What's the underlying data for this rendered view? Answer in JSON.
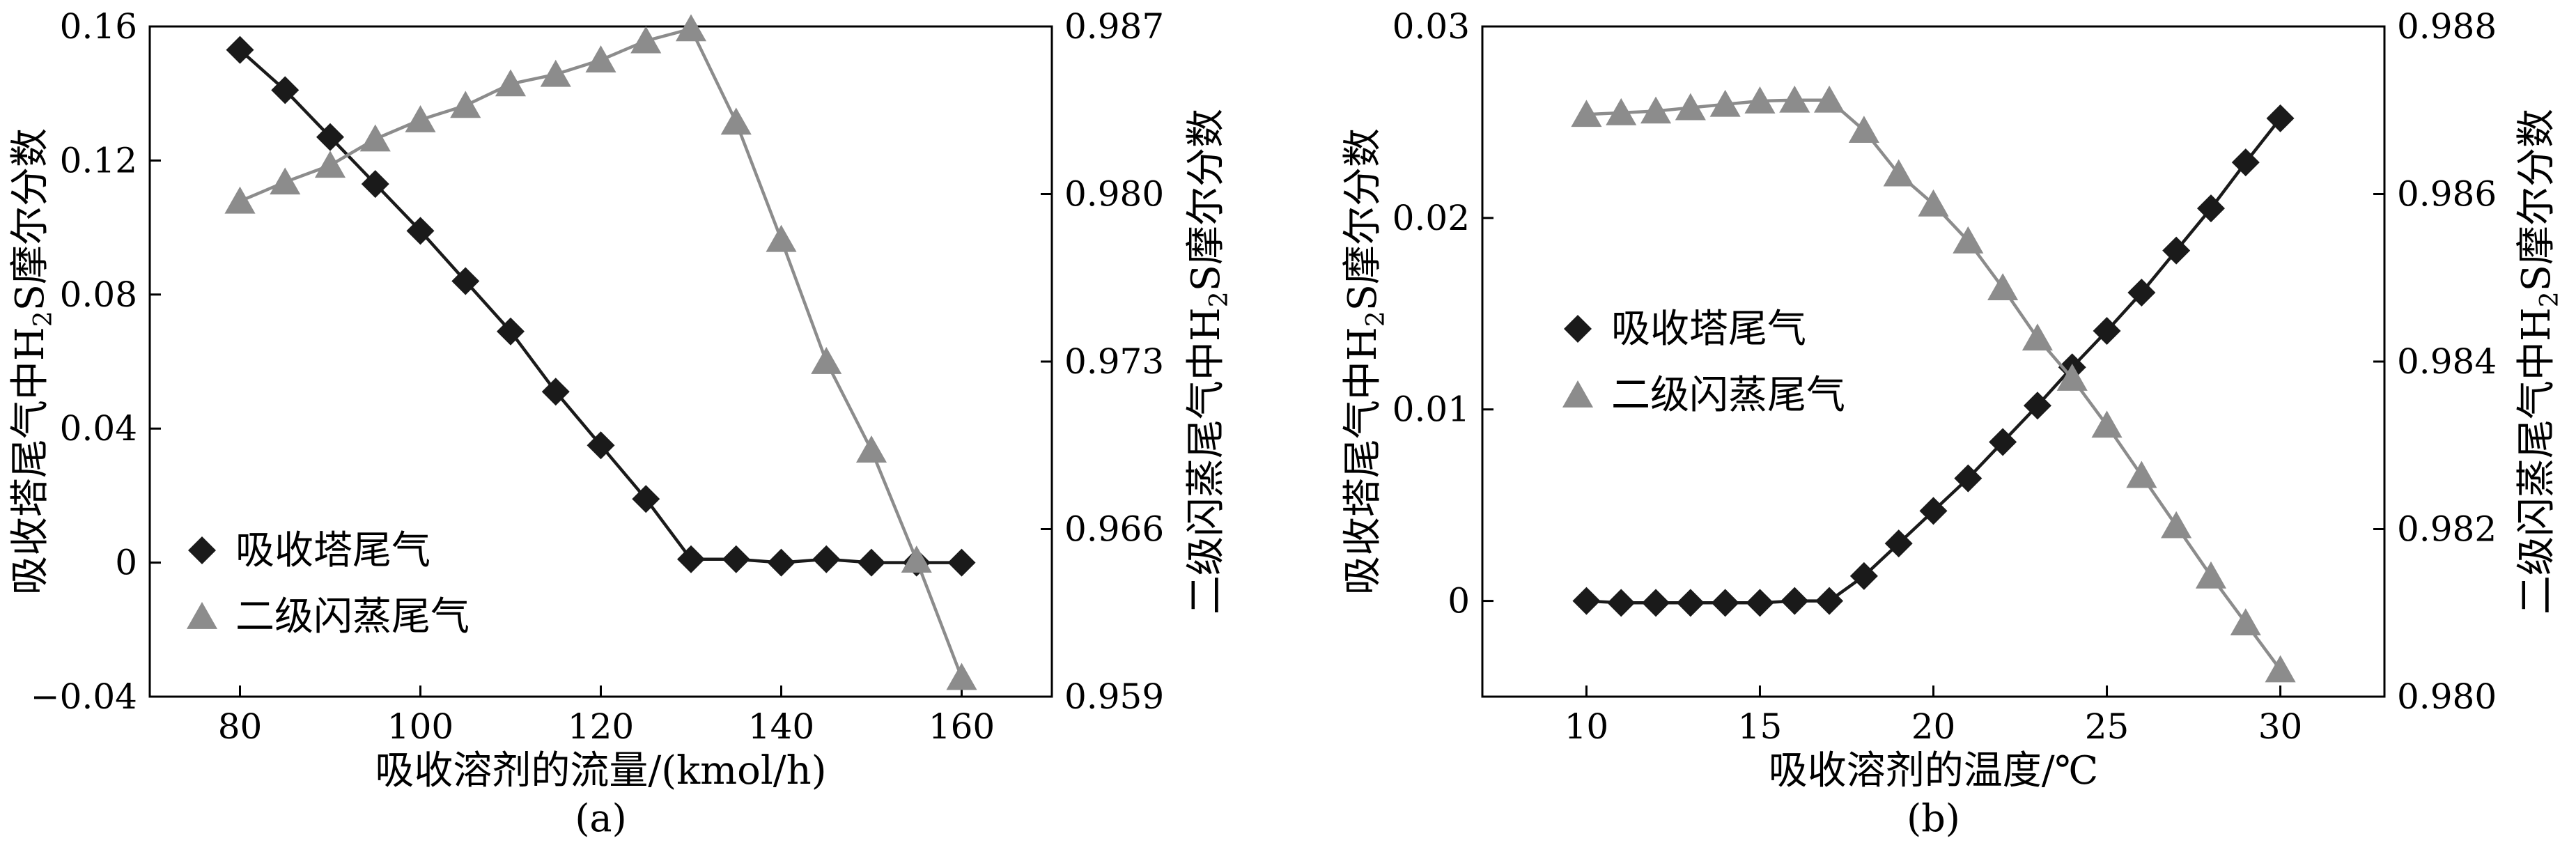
{
  "chart_data": [
    {
      "panel_label": "(a)",
      "type": "line",
      "xlabel": "吸收溶剂的流量/(kmol/h)",
      "ylabel_left_parts": [
        "吸收塔尾气中H",
        "2",
        "S摩尔分数"
      ],
      "ylabel_right_parts": [
        "二级闪蒸尾气中H",
        "2",
        "S摩尔分数"
      ],
      "xlim": [
        70,
        170
      ],
      "xticks": [
        80,
        100,
        120,
        140,
        160
      ],
      "ylim_left": [
        -0.04,
        0.16
      ],
      "yticks_left": [
        -0.04,
        0,
        0.04,
        0.08,
        0.12,
        0.16
      ],
      "ytick_labels_left": [
        "−0.04",
        "0",
        "0.04",
        "0.08",
        "0.12",
        "0.16"
      ],
      "ylim_right": [
        0.959,
        0.987
      ],
      "yticks_right": [
        0.959,
        0.966,
        0.973,
        0.98,
        0.987
      ],
      "ytick_labels_right": [
        "0.959",
        "0.966",
        "0.973",
        "0.980",
        "0.987"
      ],
      "legend_position": "bottom-left",
      "series": [
        {
          "name": "吸收塔尾气",
          "axis": "left",
          "marker": "diamond",
          "color": "#1a1a1a",
          "x": [
            80,
            85,
            90,
            95,
            100,
            105,
            110,
            115,
            120,
            125,
            130,
            135,
            140,
            145,
            150,
            155,
            160
          ],
          "y": [
            0.153,
            0.141,
            0.127,
            0.113,
            0.099,
            0.084,
            0.069,
            0.051,
            0.035,
            0.019,
            0.001,
            0.001,
            0.0,
            0.001,
            0.0,
            0.0,
            0.0
          ]
        },
        {
          "name": "二级闪蒸尾气",
          "axis": "right",
          "marker": "triangle",
          "color": "#8c8c8c",
          "x": [
            80,
            85,
            90,
            95,
            100,
            105,
            110,
            115,
            120,
            125,
            130,
            135,
            140,
            145,
            150,
            155,
            160
          ],
          "y": [
            0.9797,
            0.9805,
            0.9812,
            0.9823,
            0.9831,
            0.9837,
            0.9846,
            0.985,
            0.9856,
            0.9864,
            0.9869,
            0.983,
            0.9781,
            0.973,
            0.9693,
            0.9647,
            0.9598
          ]
        }
      ]
    },
    {
      "panel_label": "(b)",
      "type": "line",
      "xlabel": "吸收溶剂的温度/℃",
      "ylabel_left_parts": [
        "吸收塔尾气中H",
        "2",
        "S摩尔分数"
      ],
      "ylabel_right_parts": [
        "二级闪蒸尾气中H",
        "2",
        "S摩尔分数"
      ],
      "xlim": [
        7,
        33
      ],
      "xticks": [
        10,
        15,
        20,
        25,
        30
      ],
      "ylim_left": [
        -0.005,
        0.03
      ],
      "yticks_left": [
        0,
        0.01,
        0.02,
        0.03
      ],
      "ytick_labels_left": [
        "0",
        "0.01",
        "0.02",
        "0.03"
      ],
      "ylim_right": [
        0.98,
        0.988
      ],
      "yticks_right": [
        0.98,
        0.982,
        0.984,
        0.986,
        0.988
      ],
      "ytick_labels_right": [
        "0.980",
        "0.982",
        "0.984",
        "0.986",
        "0.988"
      ],
      "legend_position": "center-left",
      "series": [
        {
          "name": "吸收塔尾气",
          "axis": "left",
          "marker": "diamond",
          "color": "#1a1a1a",
          "x": [
            10,
            11,
            12,
            13,
            14,
            15,
            16,
            17,
            18,
            19,
            20,
            21,
            22,
            23,
            24,
            25,
            26,
            27,
            28,
            29,
            30
          ],
          "y": [
            0.0,
            -0.0001,
            -0.0001,
            -0.0001,
            -0.0001,
            -0.0001,
            0.0,
            0.0,
            0.0013,
            0.003,
            0.0047,
            0.0064,
            0.0083,
            0.0102,
            0.0122,
            0.0141,
            0.0161,
            0.0183,
            0.0205,
            0.0229,
            0.0252
          ]
        },
        {
          "name": "二级闪蒸尾气",
          "axis": "right",
          "marker": "triangle",
          "color": "#8c8c8c",
          "x": [
            10,
            11,
            12,
            13,
            14,
            15,
            16,
            17,
            18,
            19,
            20,
            21,
            22,
            23,
            24,
            25,
            26,
            27,
            28,
            29,
            30
          ],
          "y": [
            0.98695,
            0.98697,
            0.98699,
            0.98703,
            0.98707,
            0.98711,
            0.98712,
            0.98712,
            0.98676,
            0.98624,
            0.98588,
            0.98544,
            0.98488,
            0.98428,
            0.9838,
            0.98324,
            0.98264,
            0.98204,
            0.98144,
            0.98088,
            0.98032
          ]
        }
      ]
    }
  ]
}
